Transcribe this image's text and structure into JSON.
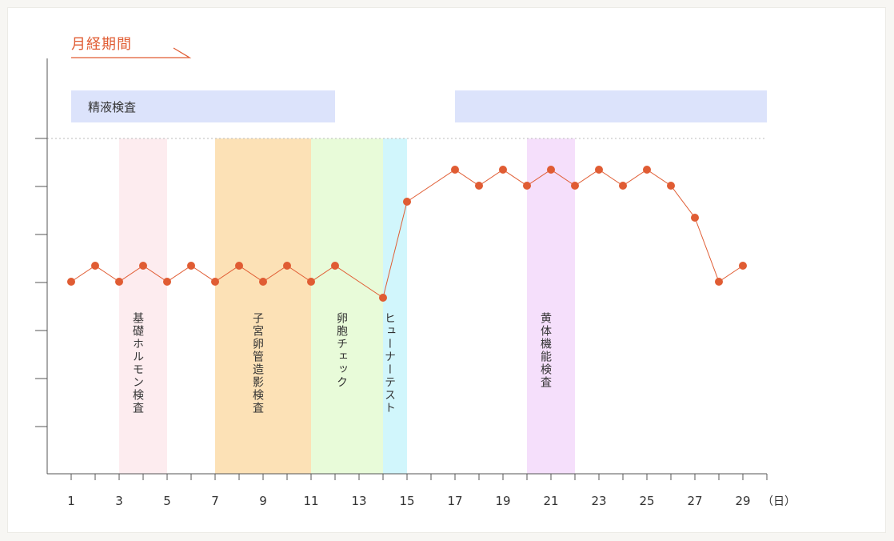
{
  "chart_data": {
    "type": "line",
    "title": "",
    "xlabel": "",
    "ylabel": "",
    "x_unit": "（日）",
    "xlim": [
      1,
      30
    ],
    "x_ticks": [
      1,
      3,
      5,
      7,
      9,
      11,
      13,
      15,
      17,
      19,
      21,
      23,
      25,
      27,
      29
    ],
    "grid": false,
    "series": [
      {
        "color": "#e05c33",
        "x": [
          1,
          2,
          3,
          4,
          5,
          6,
          7,
          8,
          9,
          10,
          11,
          12,
          14,
          15,
          17,
          18,
          19,
          20,
          21,
          22,
          23,
          24,
          25,
          26,
          27,
          28,
          29
        ],
        "y": [
          0,
          1,
          0,
          1,
          0,
          1,
          0,
          1,
          0,
          1,
          0,
          1,
          -1,
          5,
          7,
          6,
          7,
          6,
          7,
          6,
          7,
          6,
          7,
          6,
          4,
          0,
          1
        ]
      }
    ],
    "menstrual_period": {
      "label": "月経期間",
      "color": "#e05c33"
    },
    "semen_test_bars": [
      {
        "label": "精液検査",
        "from_day": 1,
        "to_day": 12,
        "color": "#dce3fb"
      },
      {
        "label": "",
        "from_day": 17,
        "to_day": 30,
        "color": "#dce3fb"
      }
    ],
    "bands": [
      {
        "label": "基礎ホルモン検査",
        "from_day": 3,
        "to_day": 5,
        "color": "#fdecef"
      },
      {
        "label": "子宮卵管造影検査",
        "from_day": 7,
        "to_day": 11,
        "color": "#fce1b6"
      },
      {
        "label": "卵胞チェック",
        "from_day": 11,
        "to_day": 14,
        "color": "#e8fbd9"
      },
      {
        "label": "ヒューナーテスト",
        "from_day": 14,
        "to_day": 15,
        "color": "#d1f6fc"
      },
      {
        "label": "黄体機能検査",
        "from_day": 20,
        "to_day": 22,
        "color": "#f5dffb"
      }
    ]
  }
}
